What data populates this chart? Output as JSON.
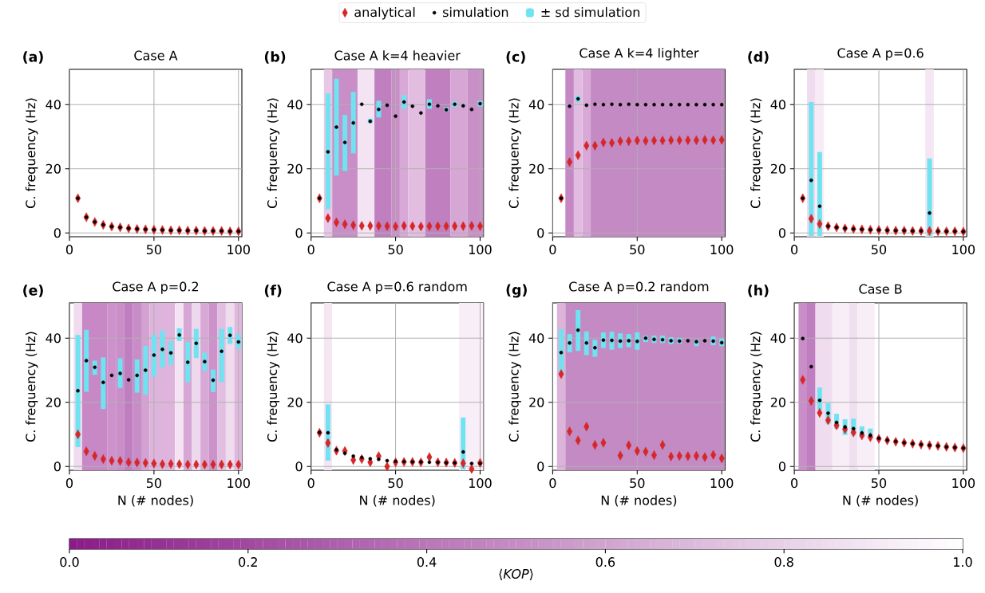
{
  "chart_data": [
    {
      "type": "scatter",
      "title": "Case A",
      "ylabel": "C. frequency (Hz)",
      "annotations": [
        "(a)",
        "± sd simulation"
      ],
      "legend": "top",
      "grid": true,
      "clabel": "⟨*KOP*⟩",
      "clim": [
        0,
        1
      ],
      "cticks": [
        {
          "value": 0,
          "label": "0.0"
        },
        {
          "value": 0.2,
          "label": "0.2"
        },
        {
          "value": 0.4,
          "label": "0.4"
        },
        {
          "value": 0.6,
          "label": "0.6"
        },
        {
          "value": 0.8,
          "label": "0.8"
        },
        {
          "value": 1,
          "label": "1.0"
        }
      ],
      "xlim": [
        0,
        102
      ],
      "ylim": [
        -1.2,
        51
      ],
      "xticks": [
        0,
        50,
        100
      ],
      "yticks": [
        0,
        20,
        40
      ],
      "x": [
        5,
        10,
        15,
        20,
        25,
        30,
        35,
        40,
        45,
        50,
        55,
        60,
        65,
        70,
        75,
        80,
        85,
        90,
        95,
        100
      ],
      "series": [
        {
          "name": "analytical",
          "color": "#d62728",
          "marker": "diamond",
          "values": [
            10.8,
            4.9,
            3.4,
            2.5,
            2.0,
            1.7,
            1.4,
            1.2,
            1.1,
            1.0,
            0.9,
            0.8,
            0.8,
            0.7,
            0.7,
            0.6,
            0.6,
            0.6,
            0.5,
            0.5
          ]
        },
        {
          "name": "simulation",
          "color": "#000000",
          "marker": "circle",
          "values": [
            10.8,
            4.9,
            3.4,
            2.5,
            2.0,
            1.7,
            1.4,
            1.2,
            1.1,
            1.0,
            0.9,
            0.8,
            0.8,
            0.7,
            0.7,
            0.6,
            0.6,
            0.6,
            0.5,
            0.5
          ]
        }
      ]
    },
    {
      "type": "scatter",
      "title": "Case A k=4 heavier",
      "ylabel": "C. frequency (Hz)",
      "annotations": [
        "(b)"
      ],
      "grid": true,
      "xlim": [
        0,
        102
      ],
      "ylim": [
        -1.2,
        51
      ],
      "xticks": [
        0,
        50,
        100
      ],
      "yticks": [
        0,
        20,
        40
      ],
      "x": [
        5,
        10,
        15,
        20,
        25,
        30,
        35,
        40,
        45,
        50,
        55,
        60,
        65,
        70,
        75,
        80,
        85,
        90,
        95,
        100
      ],
      "bands": [
        {
          "axis": "x",
          "from": 7.5,
          "to": 12.5,
          "color": "#e8c8e6"
        },
        {
          "axis": "x",
          "from": 12.5,
          "to": 27.5,
          "color": "#c98dc8"
        },
        {
          "axis": "x",
          "from": 27.5,
          "to": 37.5,
          "color": "#f4e4f3"
        },
        {
          "axis": "x",
          "from": 37.5,
          "to": 47.5,
          "color": "#c080c0"
        },
        {
          "axis": "x",
          "from": 47.5,
          "to": 52.5,
          "color": "#c98dc8"
        },
        {
          "axis": "x",
          "from": 52.5,
          "to": 57.5,
          "color": "#d8a8d6"
        },
        {
          "axis": "x",
          "from": 57.5,
          "to": 67.5,
          "color": "#e2bde0"
        },
        {
          "axis": "x",
          "from": 67.5,
          "to": 82.5,
          "color": "#c080c0"
        },
        {
          "axis": "x",
          "from": 82.5,
          "to": 92.5,
          "color": "#d6a6d4"
        },
        {
          "axis": "x",
          "from": 92.5,
          "to": 102,
          "color": "#c890c6"
        }
      ],
      "series": [
        {
          "color": "#d62728",
          "marker": "diamond",
          "values": [
            10.8,
            4.6,
            3.3,
            2.7,
            2.4,
            2.2,
            2.2,
            2.2,
            2.1,
            2.0,
            2.2,
            2.1,
            2.0,
            2.1,
            2.1,
            2.1,
            2.1,
            2.1,
            2.2,
            2.1
          ]
        },
        {
          "color": "#000000",
          "marker": "circle",
          "values": [
            10.8,
            25.3,
            33.0,
            28.2,
            34.3,
            40.1,
            34.8,
            38.5,
            39.8,
            36.4,
            40.8,
            39.5,
            37.4,
            40.1,
            39.6,
            38.4,
            40.1,
            39.6,
            38.5,
            40.3
          ],
          "errors": [
            null,
            [
              7.4,
              43.5
            ],
            [
              17.9,
              48.1
            ],
            [
              19.3,
              36.8
            ],
            [
              24.8,
              44.0
            ],
            null,
            [
              34.2,
              35.6
            ],
            [
              36.0,
              41.2
            ],
            null,
            null,
            [
              38.7,
              43.0
            ],
            null,
            null,
            [
              38.7,
              41.7
            ],
            null,
            [
              37.9,
              39.2
            ],
            [
              39.2,
              41.0
            ],
            null,
            null,
            [
              39.4,
              41.2
            ]
          ]
        }
      ]
    },
    {
      "type": "scatter",
      "title": "Case A k=4 lighter",
      "ylabel": "C. frequency (Hz)",
      "annotations": [
        "(c)"
      ],
      "grid": true,
      "xlim": [
        0,
        102
      ],
      "ylim": [
        -1.2,
        51
      ],
      "xticks": [
        0,
        50,
        100
      ],
      "yticks": [
        0,
        20,
        40
      ],
      "x": [
        5,
        10,
        15,
        20,
        25,
        30,
        35,
        40,
        45,
        50,
        55,
        60,
        65,
        70,
        75,
        80,
        85,
        90,
        95,
        100
      ],
      "bands": [
        {
          "axis": "x",
          "from": 7.5,
          "to": 12.5,
          "color": "#c688c5"
        },
        {
          "axis": "x",
          "from": 12.5,
          "to": 17.5,
          "color": "#e2bce0"
        },
        {
          "axis": "x",
          "from": 17.5,
          "to": 22.5,
          "color": "#d8a8d6"
        },
        {
          "axis": "x",
          "from": 22.5,
          "to": 102,
          "color": "#c48ac4"
        }
      ],
      "series": [
        {
          "color": "#d62728",
          "marker": "diamond",
          "values": [
            10.8,
            22.1,
            24.2,
            27.2,
            27.2,
            28.2,
            28.1,
            28.6,
            28.6,
            28.8,
            28.7,
            28.8,
            28.8,
            28.9,
            28.9,
            28.9,
            28.9,
            29.0,
            28.9,
            29.0
          ]
        },
        {
          "color": "#000000",
          "marker": "circle",
          "values": [
            10.8,
            39.5,
            41.8,
            39.8,
            40.1,
            40.0,
            40.1,
            40.0,
            40.1,
            40.0,
            40.0,
            40.0,
            40.0,
            40.0,
            40.0,
            40.0,
            40.0,
            40.0,
            40.0,
            40.0
          ],
          "errors": [
            null,
            null,
            [
              40.7,
              42.8
            ],
            null,
            null,
            null,
            null,
            null,
            null,
            null,
            null,
            null,
            null,
            null,
            null,
            null,
            null,
            null,
            null,
            null
          ]
        }
      ]
    },
    {
      "type": "scatter",
      "title": "Case A p=0.6",
      "ylabel": "C. frequency (Hz)",
      "annotations": [
        "(d)"
      ],
      "grid": true,
      "xlim": [
        0,
        102
      ],
      "ylim": [
        -1.2,
        51
      ],
      "xticks": [
        0,
        50,
        100
      ],
      "yticks": [
        0,
        20,
        40
      ],
      "x": [
        5,
        10,
        15,
        20,
        25,
        30,
        35,
        40,
        45,
        50,
        55,
        60,
        65,
        70,
        75,
        80,
        85,
        90,
        95,
        100
      ],
      "bands": [
        {
          "axis": "x",
          "from": 7.5,
          "to": 12.5,
          "color": "#f0dcef"
        },
        {
          "axis": "x",
          "from": 12.5,
          "to": 17.5,
          "color": "#f7ecf6"
        },
        {
          "axis": "x",
          "from": 77.5,
          "to": 82.5,
          "color": "#f4e6f3"
        }
      ],
      "series": [
        {
          "color": "#d62728",
          "marker": "diamond",
          "values": [
            10.8,
            4.4,
            2.8,
            2.1,
            1.7,
            1.4,
            1.2,
            1.1,
            1.0,
            0.9,
            0.8,
            0.7,
            0.7,
            0.6,
            0.6,
            0.6,
            0.5,
            0.5,
            0.5,
            0.4
          ]
        },
        {
          "color": "#000000",
          "marker": "circle",
          "values": [
            10.8,
            16.4,
            8.3,
            2.1,
            1.7,
            1.4,
            1.2,
            1.1,
            1.0,
            0.9,
            0.8,
            0.7,
            0.7,
            0.6,
            0.6,
            6.2,
            0.5,
            0.5,
            0.5,
            0.4
          ],
          "errors": [
            null,
            [
              -1.0,
              40.8
            ],
            [
              -1.0,
              25.2
            ],
            null,
            null,
            null,
            null,
            null,
            null,
            null,
            null,
            null,
            null,
            null,
            null,
            [
              -1.0,
              23.2
            ],
            null,
            null,
            null,
            null
          ]
        }
      ]
    },
    {
      "type": "scatter",
      "title": "Case A p=0.2",
      "ylabel": "C. frequency (Hz)",
      "xlabel": "N (# nodes)",
      "annotations": [
        "(e)"
      ],
      "grid": true,
      "xlim": [
        0,
        102
      ],
      "ylim": [
        -1.2,
        51
      ],
      "xticks": [
        0,
        50,
        100
      ],
      "yticks": [
        0,
        20,
        40
      ],
      "x": [
        5,
        10,
        15,
        20,
        25,
        30,
        35,
        40,
        45,
        50,
        55,
        60,
        65,
        70,
        75,
        80,
        85,
        90,
        95,
        100
      ],
      "bands": [
        {
          "axis": "x",
          "from": 2.5,
          "to": 7.5,
          "color": "#f0dcee"
        },
        {
          "axis": "x",
          "from": 7.5,
          "to": 22.5,
          "color": "#c888c6"
        },
        {
          "axis": "x",
          "from": 22.5,
          "to": 27.5,
          "color": "#cd92cb"
        },
        {
          "axis": "x",
          "from": 27.5,
          "to": 32.5,
          "color": "#c98ec8"
        },
        {
          "axis": "x",
          "from": 32.5,
          "to": 37.5,
          "color": "#bf7ec0"
        },
        {
          "axis": "x",
          "from": 37.5,
          "to": 42.5,
          "color": "#c88cc6"
        },
        {
          "axis": "x",
          "from": 42.5,
          "to": 47.5,
          "color": "#d4a2d2"
        },
        {
          "axis": "x",
          "from": 47.5,
          "to": 62.5,
          "color": "#deb4dc"
        },
        {
          "axis": "x",
          "from": 62.5,
          "to": 67.5,
          "color": "#f4e4f3"
        },
        {
          "axis": "x",
          "from": 67.5,
          "to": 72.5,
          "color": "#d6a6d4"
        },
        {
          "axis": "x",
          "from": 72.5,
          "to": 77.5,
          "color": "#eed8ed"
        },
        {
          "axis": "x",
          "from": 77.5,
          "to": 82.5,
          "color": "#d8a8d6"
        },
        {
          "axis": "x",
          "from": 82.5,
          "to": 87.5,
          "color": "#cc92ca"
        },
        {
          "axis": "x",
          "from": 87.5,
          "to": 92.5,
          "color": "#e2bee0"
        },
        {
          "axis": "x",
          "from": 92.5,
          "to": 97.5,
          "color": "#f0dcef"
        },
        {
          "axis": "x",
          "from": 97.5,
          "to": 102,
          "color": "#e0b8de"
        }
      ],
      "series": [
        {
          "color": "#d62728",
          "marker": "diamond",
          "values": [
            10.0,
            4.7,
            3.3,
            2.3,
            1.8,
            1.7,
            1.3,
            1.2,
            1.1,
            0.9,
            0.7,
            0.8,
            0.7,
            0.6,
            0.6,
            0.6,
            0.6,
            0.6,
            0.6,
            0.6
          ]
        },
        {
          "color": "#000000",
          "marker": "circle",
          "values": [
            23.6,
            33.0,
            30.9,
            26.2,
            28.4,
            29.0,
            27.0,
            28.4,
            30.0,
            34.7,
            36.5,
            35.4,
            41.0,
            32.5,
            38.4,
            32.7,
            26.9,
            35.9,
            40.9,
            38.8
          ],
          "errors": [
            [
              6.0,
              41.0
            ],
            [
              23.3,
              42.6
            ],
            [
              28.6,
              33.0
            ],
            [
              17.9,
              34.0
            ],
            null,
            [
              24.5,
              33.7
            ],
            null,
            [
              23.0,
              33.4
            ],
            [
              22.4,
              37.6
            ],
            [
              28.0,
              41.1
            ],
            [
              30.8,
              42.3
            ],
            [
              31.7,
              39.0
            ],
            [
              39.1,
              43.1
            ],
            [
              26.3,
              38.8
            ],
            [
              33.8,
              42.9
            ],
            [
              29.8,
              35.5
            ],
            [
              23.2,
              30.2
            ],
            [
              26.3,
              42.9
            ],
            [
              38.2,
              43.5
            ],
            [
              36.7,
              41.2
            ]
          ]
        }
      ]
    },
    {
      "type": "scatter",
      "title": "Case A p=0.6 random",
      "ylabel": "C. frequency (Hz)",
      "xlabel": "N (# nodes)",
      "annotations": [
        "(f)"
      ],
      "grid": true,
      "xlim": [
        0,
        102
      ],
      "ylim": [
        -1.2,
        51
      ],
      "xticks": [
        0,
        50,
        100
      ],
      "yticks": [
        0,
        20,
        40
      ],
      "x": [
        5,
        10,
        15,
        20,
        25,
        30,
        35,
        40,
        45,
        50,
        55,
        60,
        65,
        70,
        75,
        80,
        85,
        90,
        95,
        100
      ],
      "bands": [
        {
          "axis": "x",
          "from": 7.5,
          "to": 12.5,
          "color": "#f4e6f3"
        },
        {
          "axis": "x",
          "from": 87.5,
          "to": 102,
          "color": "#f8eef7"
        }
      ],
      "series": [
        {
          "color": "#d62728",
          "marker": "diamond",
          "values": [
            10.5,
            7.3,
            4.9,
            4.8,
            2.0,
            2.3,
            1.3,
            3.2,
            0.0,
            1.3,
            1.4,
            1.4,
            1.3,
            2.9,
            1.3,
            1.2,
            1.1,
            1.0,
            -0.8,
            1.1
          ]
        },
        {
          "color": "#000000",
          "marker": "circle",
          "values": [
            10.6,
            10.5,
            5.2,
            4.1,
            3.2,
            2.8,
            2.4,
            2.2,
            1.8,
            1.6,
            1.5,
            1.4,
            1.4,
            1.3,
            1.3,
            1.1,
            1.1,
            4.5,
            0.9,
            0.9
          ],
          "errors": [
            null,
            [
              1.8,
              19.3
            ],
            null,
            null,
            null,
            null,
            null,
            null,
            null,
            null,
            null,
            null,
            null,
            null,
            null,
            null,
            null,
            [
              -1.0,
              15.3
            ],
            null,
            null
          ]
        }
      ]
    },
    {
      "type": "scatter",
      "title": "Case A p=0.2 random",
      "ylabel": "C. frequency (Hz)",
      "xlabel": "N (# nodes)",
      "annotations": [
        "(g)"
      ],
      "grid": true,
      "xlim": [
        0,
        102
      ],
      "ylim": [
        -1.2,
        51
      ],
      "xticks": [
        0,
        50,
        100
      ],
      "yticks": [
        0,
        20,
        40
      ],
      "x": [
        5,
        10,
        15,
        20,
        25,
        30,
        35,
        40,
        45,
        50,
        55,
        60,
        65,
        70,
        75,
        80,
        85,
        90,
        95,
        100
      ],
      "bands": [
        {
          "axis": "x",
          "from": 2.5,
          "to": 7.5,
          "color": "#dcb4da"
        },
        {
          "axis": "x",
          "from": 7.5,
          "to": 102,
          "color": "#c48ac4"
        }
      ],
      "series": [
        {
          "color": "#d62728",
          "marker": "diamond",
          "values": [
            28.8,
            10.9,
            8.1,
            12.4,
            6.7,
            7.4,
            null,
            3.4,
            6.6,
            4.8,
            4.6,
            3.5,
            6.7,
            3.1,
            3.3,
            3.2,
            3.3,
            2.9,
            3.6,
            2.5
          ]
        },
        {
          "color": "#000000",
          "marker": "circle",
          "values": [
            35.5,
            38.5,
            42.5,
            38.5,
            37.0,
            39.4,
            39.3,
            39.1,
            39.2,
            39.0,
            40.0,
            39.6,
            39.5,
            39.2,
            39.1,
            39.2,
            38.9,
            39.2,
            39.1,
            38.6
          ],
          "errors": [
            [
              29.5,
              42.8
            ],
            [
              35.6,
              41.3
            ],
            [
              36.0,
              48.8
            ],
            [
              34.7,
              42.1
            ],
            [
              34.2,
              39.5
            ],
            [
              36.9,
              41.8
            ],
            [
              36.4,
              42.0
            ],
            [
              36.9,
              41.5
            ],
            [
              37.2,
              41.3
            ],
            [
              36.4,
              41.8
            ],
            [
              38.8,
              40.8
            ],
            [
              38.5,
              40.8
            ],
            [
              38.5,
              40.8
            ],
            [
              38.1,
              40.3
            ],
            [
              38.3,
              40.1
            ],
            null,
            [
              37.5,
              39.5
            ],
            null,
            [
              37.8,
              40.5
            ],
            [
              37.5,
              39.8
            ]
          ]
        }
      ]
    },
    {
      "type": "scatter",
      "title": "Case B",
      "ylabel": "C. frequency (Hz)",
      "xlabel": "N (# nodes)",
      "annotations": [
        "(h)"
      ],
      "grid": true,
      "xlim": [
        0,
        102
      ],
      "ylim": [
        -1.2,
        51
      ],
      "xticks": [
        0,
        50,
        100
      ],
      "yticks": [
        0,
        20,
        40
      ],
      "x": [
        5,
        10,
        15,
        20,
        25,
        30,
        35,
        40,
        45,
        50,
        55,
        60,
        65,
        70,
        75,
        80,
        85,
        90,
        95,
        100
      ],
      "bands": [
        {
          "axis": "x",
          "from": 2.5,
          "to": 7.5,
          "color": "#c98dc8"
        },
        {
          "axis": "x",
          "from": 7.5,
          "to": 12.5,
          "color": "#bf7ec0"
        },
        {
          "axis": "x",
          "from": 12.5,
          "to": 22.5,
          "color": "#f0dcef"
        },
        {
          "axis": "x",
          "from": 22.5,
          "to": 32.5,
          "color": "#f8eef7"
        },
        {
          "axis": "x",
          "from": 32.5,
          "to": 37.5,
          "color": "#f0e0ef"
        },
        {
          "axis": "x",
          "from": 37.5,
          "to": 47.5,
          "color": "#f8eef7"
        }
      ],
      "series": [
        {
          "color": "#d62728",
          "marker": "diamond",
          "values": [
            27.0,
            20.4,
            16.7,
            14.4,
            12.8,
            11.6,
            10.6,
            9.7,
            9.1,
            8.6,
            8.1,
            7.7,
            7.4,
            7.1,
            6.8,
            6.6,
            6.4,
            6.1,
            5.9,
            5.7
          ]
        },
        {
          "color": "#000000",
          "marker": "circle",
          "values": [
            39.9,
            31.1,
            20.6,
            16.6,
            13.7,
            12.3,
            11.8,
            10.4,
            9.7,
            8.8,
            8.2,
            7.8,
            7.4,
            7.1,
            6.8,
            6.6,
            6.4,
            6.1,
            5.9,
            5.7
          ],
          "errors": [
            null,
            null,
            [
              17.7,
              24.6
            ],
            [
              13.3,
              19.7
            ],
            [
              11.8,
              16.4
            ],
            [
              9.8,
              14.7
            ],
            [
              9.8,
              14.9
            ],
            [
              9.0,
              12.5
            ],
            [
              9.0,
              11.8
            ],
            null,
            null,
            null,
            null,
            null,
            null,
            null,
            null,
            null,
            null,
            null
          ]
        }
      ]
    }
  ]
}
